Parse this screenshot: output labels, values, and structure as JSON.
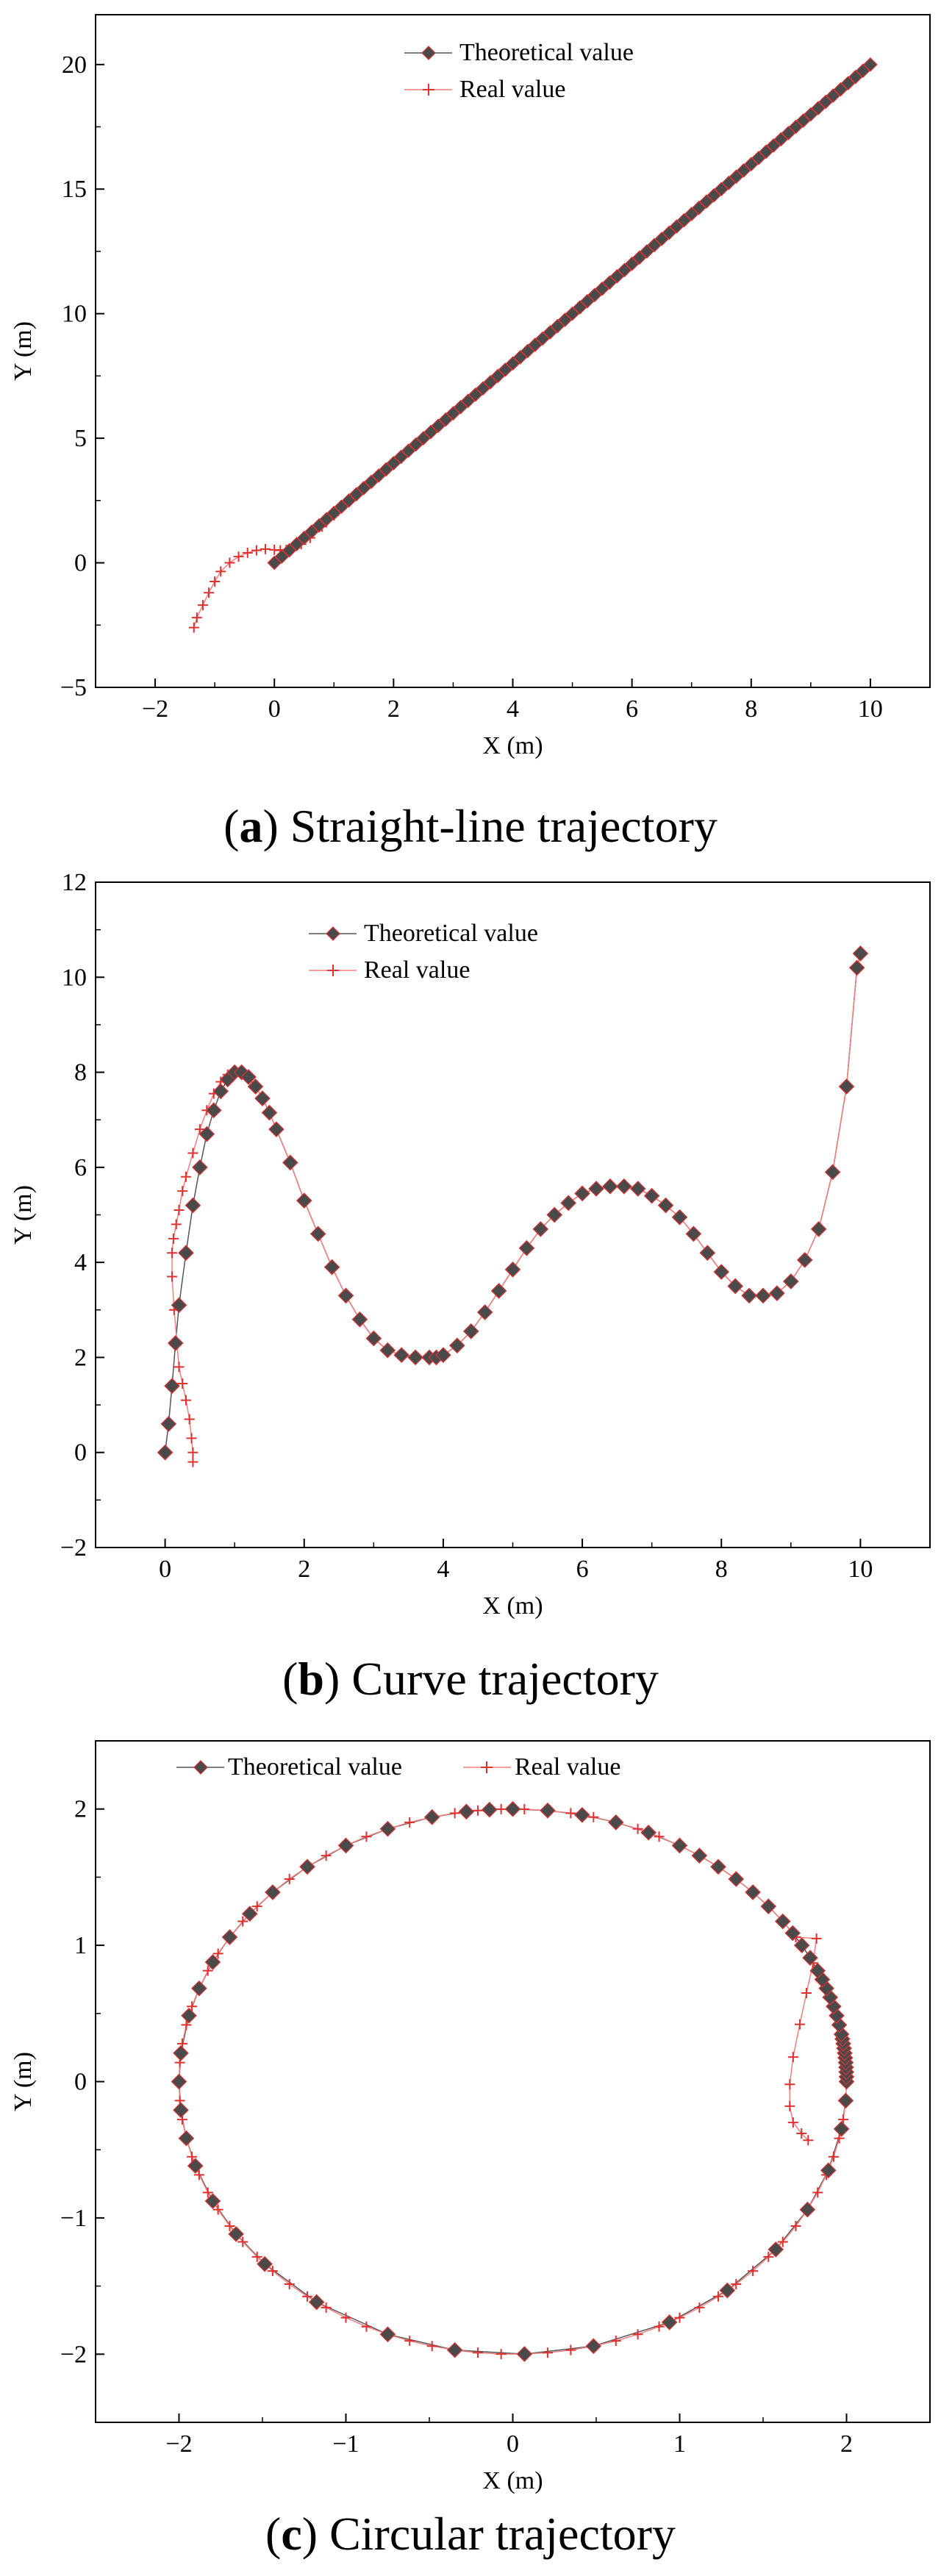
{
  "chart_data": [
    {
      "type": "line",
      "caption": {
        "letter": "a",
        "text": "Straight-line trajectory"
      },
      "xlabel": "X (m)",
      "ylabel": "Y (m)",
      "xlim": [
        -3,
        11
      ],
      "ylim": [
        -5,
        22
      ],
      "xticks": [
        -2,
        0,
        2,
        4,
        6,
        8,
        10
      ],
      "xticklabels": [
        "−2",
        "0",
        "2",
        "4",
        "6",
        "8",
        "10"
      ],
      "yticks": [
        -5,
        0,
        5,
        10,
        15,
        20
      ],
      "yticklabels": [
        "−5",
        "0",
        "5",
        "10",
        "15",
        "20"
      ],
      "legend": {
        "position": "top-center",
        "entries": [
          "Theoretical value",
          "Real value"
        ]
      },
      "series": [
        {
          "name": "Theoretical value",
          "kind": "line",
          "x": [
            0,
            10
          ],
          "y": [
            0,
            20
          ],
          "markers": 80
        },
        {
          "name": "Real value",
          "x": [
            -1.35,
            -1.3,
            -1.2,
            -1.1,
            -1.0,
            -0.9,
            -0.75,
            -0.6,
            -0.45,
            -0.3,
            -0.15,
            0.0,
            0.1,
            0.2,
            0.3,
            0.45,
            0.6,
            0.8,
            1.0,
            1.2,
            1.5,
            2.0,
            2.5,
            3.0,
            3.5,
            4.0,
            5.0,
            6.0,
            7.0,
            8.0,
            9.0,
            10.0
          ],
          "y": [
            -2.6,
            -2.2,
            -1.7,
            -1.2,
            -0.75,
            -0.35,
            0.0,
            0.25,
            0.4,
            0.5,
            0.55,
            0.52,
            0.5,
            0.52,
            0.58,
            0.75,
            1.0,
            1.45,
            1.9,
            2.35,
            2.95,
            3.95,
            4.95,
            5.95,
            6.95,
            7.95,
            9.95,
            11.95,
            13.95,
            15.95,
            17.95,
            20.0
          ]
        }
      ]
    },
    {
      "type": "line",
      "caption": {
        "letter": "b",
        "text": "Curve trajectory"
      },
      "xlabel": "X (m)",
      "ylabel": "Y (m)",
      "xlim": [
        -1,
        11
      ],
      "ylim": [
        -2,
        12
      ],
      "xticks": [
        0,
        2,
        4,
        6,
        8,
        10
      ],
      "xticklabels": [
        "0",
        "2",
        "4",
        "6",
        "8",
        "10"
      ],
      "yticks": [
        -2,
        0,
        2,
        4,
        6,
        8,
        10,
        12
      ],
      "yticklabels": [
        "−2",
        "0",
        "2",
        "4",
        "6",
        "8",
        "10",
        "12"
      ],
      "legend": {
        "position": "top-center",
        "entries": [
          "Theoretical value",
          "Real value"
        ]
      },
      "series": [
        {
          "name": "Theoretical value",
          "x": [
            0.0,
            0.05,
            0.1,
            0.15,
            0.2,
            0.3,
            0.4,
            0.5,
            0.6,
            0.7,
            0.8,
            0.9,
            1.0,
            1.1,
            1.2,
            1.3,
            1.4,
            1.5,
            1.6,
            1.8,
            2.0,
            2.2,
            2.4,
            2.6,
            2.8,
            3.0,
            3.2,
            3.4,
            3.6,
            3.8,
            3.9,
            4.0,
            4.2,
            4.4,
            4.6,
            4.8,
            5.0,
            5.2,
            5.4,
            5.6,
            5.8,
            6.0,
            6.2,
            6.4,
            6.6,
            6.8,
            7.0,
            7.2,
            7.4,
            7.6,
            7.8,
            8.0,
            8.2,
            8.4,
            8.6,
            8.8,
            9.0,
            9.2,
            9.4,
            9.6,
            9.8,
            9.95,
            10.0
          ],
          "y": [
            0.0,
            0.6,
            1.4,
            2.3,
            3.1,
            4.2,
            5.2,
            6.0,
            6.7,
            7.2,
            7.6,
            7.85,
            8.0,
            8.0,
            7.9,
            7.7,
            7.45,
            7.15,
            6.8,
            6.1,
            5.3,
            4.6,
            3.9,
            3.3,
            2.8,
            2.4,
            2.15,
            2.05,
            2.0,
            2.0,
            2.0,
            2.05,
            2.25,
            2.55,
            2.95,
            3.4,
            3.85,
            4.3,
            4.7,
            5.0,
            5.25,
            5.45,
            5.55,
            5.6,
            5.6,
            5.55,
            5.4,
            5.2,
            4.95,
            4.6,
            4.2,
            3.8,
            3.5,
            3.3,
            3.3,
            3.35,
            3.6,
            4.05,
            4.7,
            5.9,
            7.7,
            10.2,
            10.5
          ]
        },
        {
          "name": "Real value",
          "x": [
            0.4,
            0.4,
            0.38,
            0.35,
            0.3,
            0.25,
            0.2,
            0.17,
            0.13,
            0.1,
            0.1,
            0.12,
            0.16,
            0.2,
            0.25,
            0.3,
            0.4,
            0.5,
            0.6,
            0.7,
            0.8,
            0.9,
            1.0,
            1.1,
            1.2,
            1.3,
            1.4,
            1.5,
            1.6,
            1.8,
            2.0,
            2.2,
            2.4,
            2.6,
            2.8,
            3.0,
            3.2,
            3.4,
            3.6,
            3.8,
            3.9,
            4.0,
            4.2,
            4.4,
            4.6,
            4.8,
            5.0,
            5.2,
            5.4,
            5.6,
            5.8,
            6.0,
            6.2,
            6.4,
            6.6,
            6.8,
            7.0,
            7.2,
            7.4,
            7.6,
            7.8,
            8.0,
            8.2,
            8.4,
            8.6,
            8.8,
            9.0,
            9.2,
            9.4,
            9.6,
            9.8,
            9.95,
            10.0
          ],
          "y": [
            -0.2,
            0.0,
            0.3,
            0.7,
            1.1,
            1.45,
            1.8,
            2.3,
            3.0,
            3.7,
            4.2,
            4.5,
            4.8,
            5.1,
            5.5,
            5.8,
            6.3,
            6.8,
            7.2,
            7.55,
            7.8,
            7.95,
            8.0,
            8.0,
            7.9,
            7.7,
            7.45,
            7.15,
            6.8,
            6.1,
            5.3,
            4.6,
            3.9,
            3.3,
            2.8,
            2.4,
            2.15,
            2.05,
            2.0,
            2.0,
            2.0,
            2.05,
            2.25,
            2.55,
            2.95,
            3.4,
            3.85,
            4.3,
            4.7,
            5.0,
            5.25,
            5.45,
            5.55,
            5.6,
            5.6,
            5.55,
            5.4,
            5.2,
            4.95,
            4.6,
            4.2,
            3.8,
            3.5,
            3.3,
            3.3,
            3.35,
            3.6,
            4.05,
            4.7,
            5.9,
            7.7,
            10.2,
            10.5
          ]
        }
      ]
    },
    {
      "type": "line",
      "caption": {
        "letter": "c",
        "text": "Circular trajectory"
      },
      "xlabel": "X (m)",
      "ylabel": "Y (m)",
      "xlim": [
        -2.5,
        2.5
      ],
      "ylim": [
        -2.5,
        2.5
      ],
      "xticks": [
        -2,
        -1,
        0,
        1,
        2
      ],
      "xticklabels": [
        "−2",
        "−1",
        "0",
        "1",
        "2"
      ],
      "yticks": [
        -2,
        -1,
        0,
        1,
        2
      ],
      "yticklabels": [
        "−2",
        "−1",
        "0",
        "1",
        "2"
      ],
      "legend": {
        "position": "top-center",
        "entries": [
          "Theoretical value",
          "Real value"
        ]
      },
      "series": [
        {
          "name": "Theoretical value",
          "kind": "circle",
          "radius": 2,
          "angles_deg": [
            0,
            1,
            2,
            3,
            4,
            5,
            6,
            7,
            8,
            9,
            10,
            12,
            14,
            16,
            18,
            20,
            22,
            24,
            27,
            30,
            33,
            36,
            40,
            44,
            48,
            52,
            56,
            60,
            66,
            72,
            78,
            84,
            90,
            94,
            98,
            104,
            112,
            120,
            128,
            136,
            142,
            148,
            154,
            160,
            166,
            174,
            180,
            186,
            192,
            198,
            206,
            214,
            222,
            234,
            248,
            260,
            272,
            284,
            298,
            310,
            322,
            332,
            341,
            350,
            356
          ]
        },
        {
          "name": "Real value",
          "x": [
            1.77,
            1.73,
            1.68,
            1.66,
            1.66,
            1.68,
            1.72,
            1.76,
            1.8,
            1.82
          ],
          "y": [
            -0.43,
            -0.38,
            -0.3,
            -0.18,
            -0.02,
            0.18,
            0.42,
            0.65,
            0.87,
            1.05
          ],
          "then_circle_from_deg": 32
        }
      ]
    }
  ]
}
